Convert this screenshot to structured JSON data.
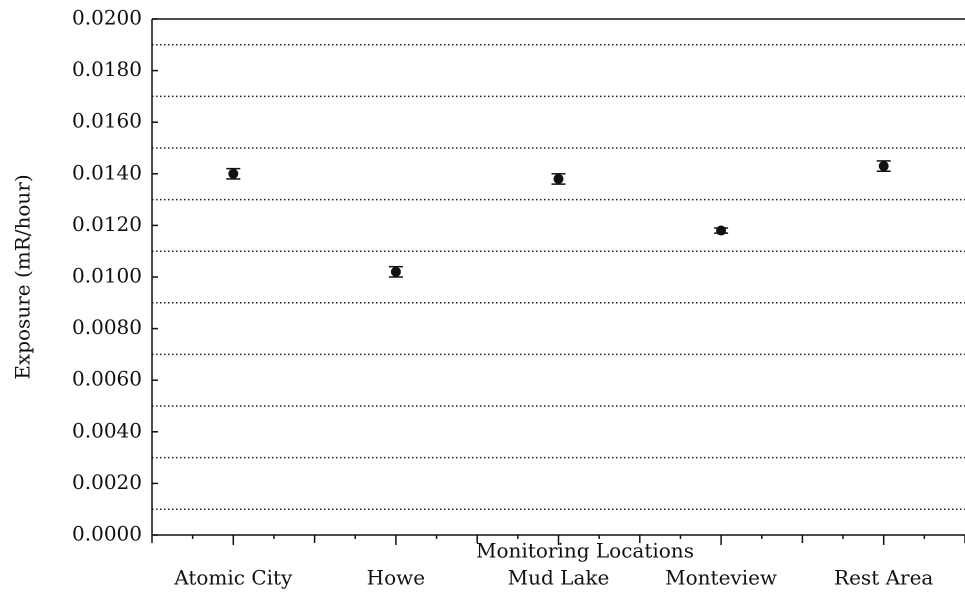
{
  "chart_data": {
    "type": "errorbar",
    "y_label": "Exposure (mR/hour)",
    "x_label": "Monitoring Locations",
    "categories": [
      "Atomic City",
      "Howe",
      "Mud Lake",
      "Monteview",
      "Rest Area"
    ],
    "values": [
      0.014,
      0.0102,
      0.0138,
      0.0118,
      0.0143
    ],
    "errors": [
      0.0002,
      0.0002,
      0.0002,
      0.0001,
      0.0002
    ],
    "color": "#111111",
    "ylim": [
      0,
      0.02
    ],
    "yticks": [
      {
        "value": 0,
        "label": "0.0000"
      },
      {
        "value": 0.002,
        "label": "0.0020"
      },
      {
        "value": 0.004,
        "label": "0.0040"
      },
      {
        "value": 0.006,
        "label": "0.0060"
      },
      {
        "value": 0.008,
        "label": "0.0080"
      },
      {
        "value": 0.01,
        "label": "0.0100"
      },
      {
        "value": 0.012,
        "label": "0.0120"
      },
      {
        "value": 0.014,
        "label": "0.0140"
      },
      {
        "value": 0.016,
        "label": "0.0160"
      },
      {
        "value": 0.018,
        "label": "0.0180"
      },
      {
        "value": 0.02,
        "label": "0.0200"
      }
    ],
    "grid_yticks": [
      0.001,
      0.003,
      0.005,
      0.007,
      0.009,
      0.011,
      0.013,
      0.015,
      0.017,
      0.019
    ],
    "grid": true
  }
}
